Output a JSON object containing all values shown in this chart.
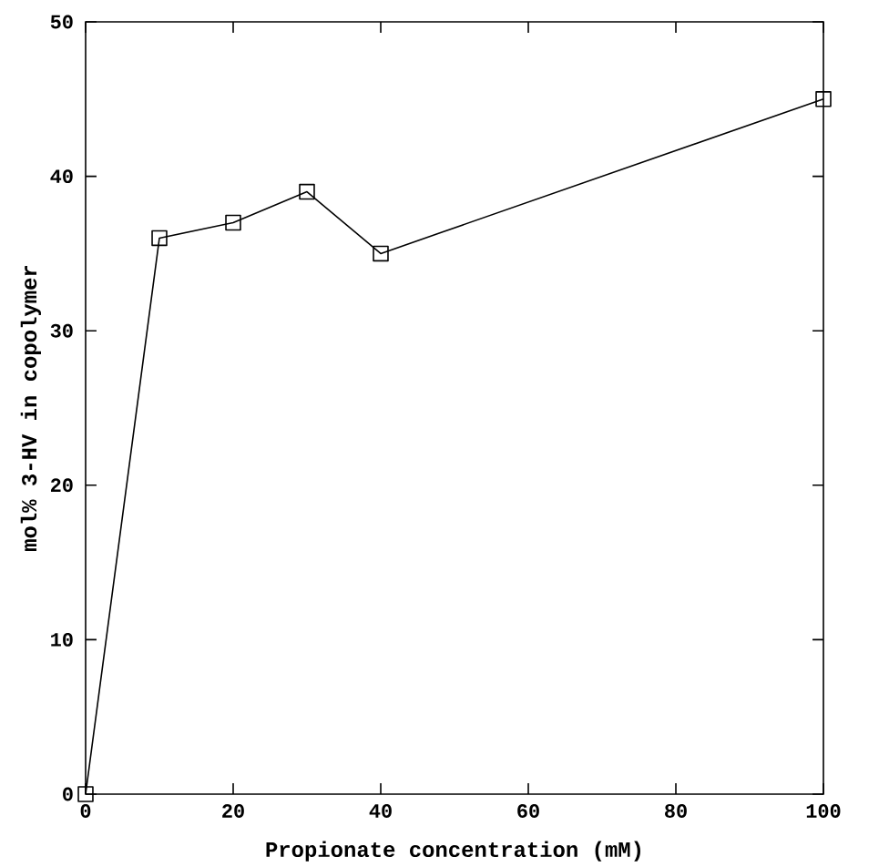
{
  "chart_data": {
    "type": "line",
    "xlabel": "Propionate concentration (mM)",
    "ylabel": "mol% 3-HV in copolymer",
    "x": [
      0,
      10,
      20,
      30,
      40,
      100
    ],
    "series": [
      {
        "color": "#000000",
        "values": [
          0,
          36,
          37,
          39,
          35,
          45
        ]
      }
    ],
    "xlim": [
      0,
      100
    ],
    "ylim": [
      0,
      50
    ],
    "xticks": [
      0,
      20,
      40,
      60,
      80,
      100
    ],
    "yticks": [
      0,
      10,
      20,
      30,
      40,
      50
    ],
    "grid": false,
    "marker": "square",
    "line_style": "solid"
  }
}
